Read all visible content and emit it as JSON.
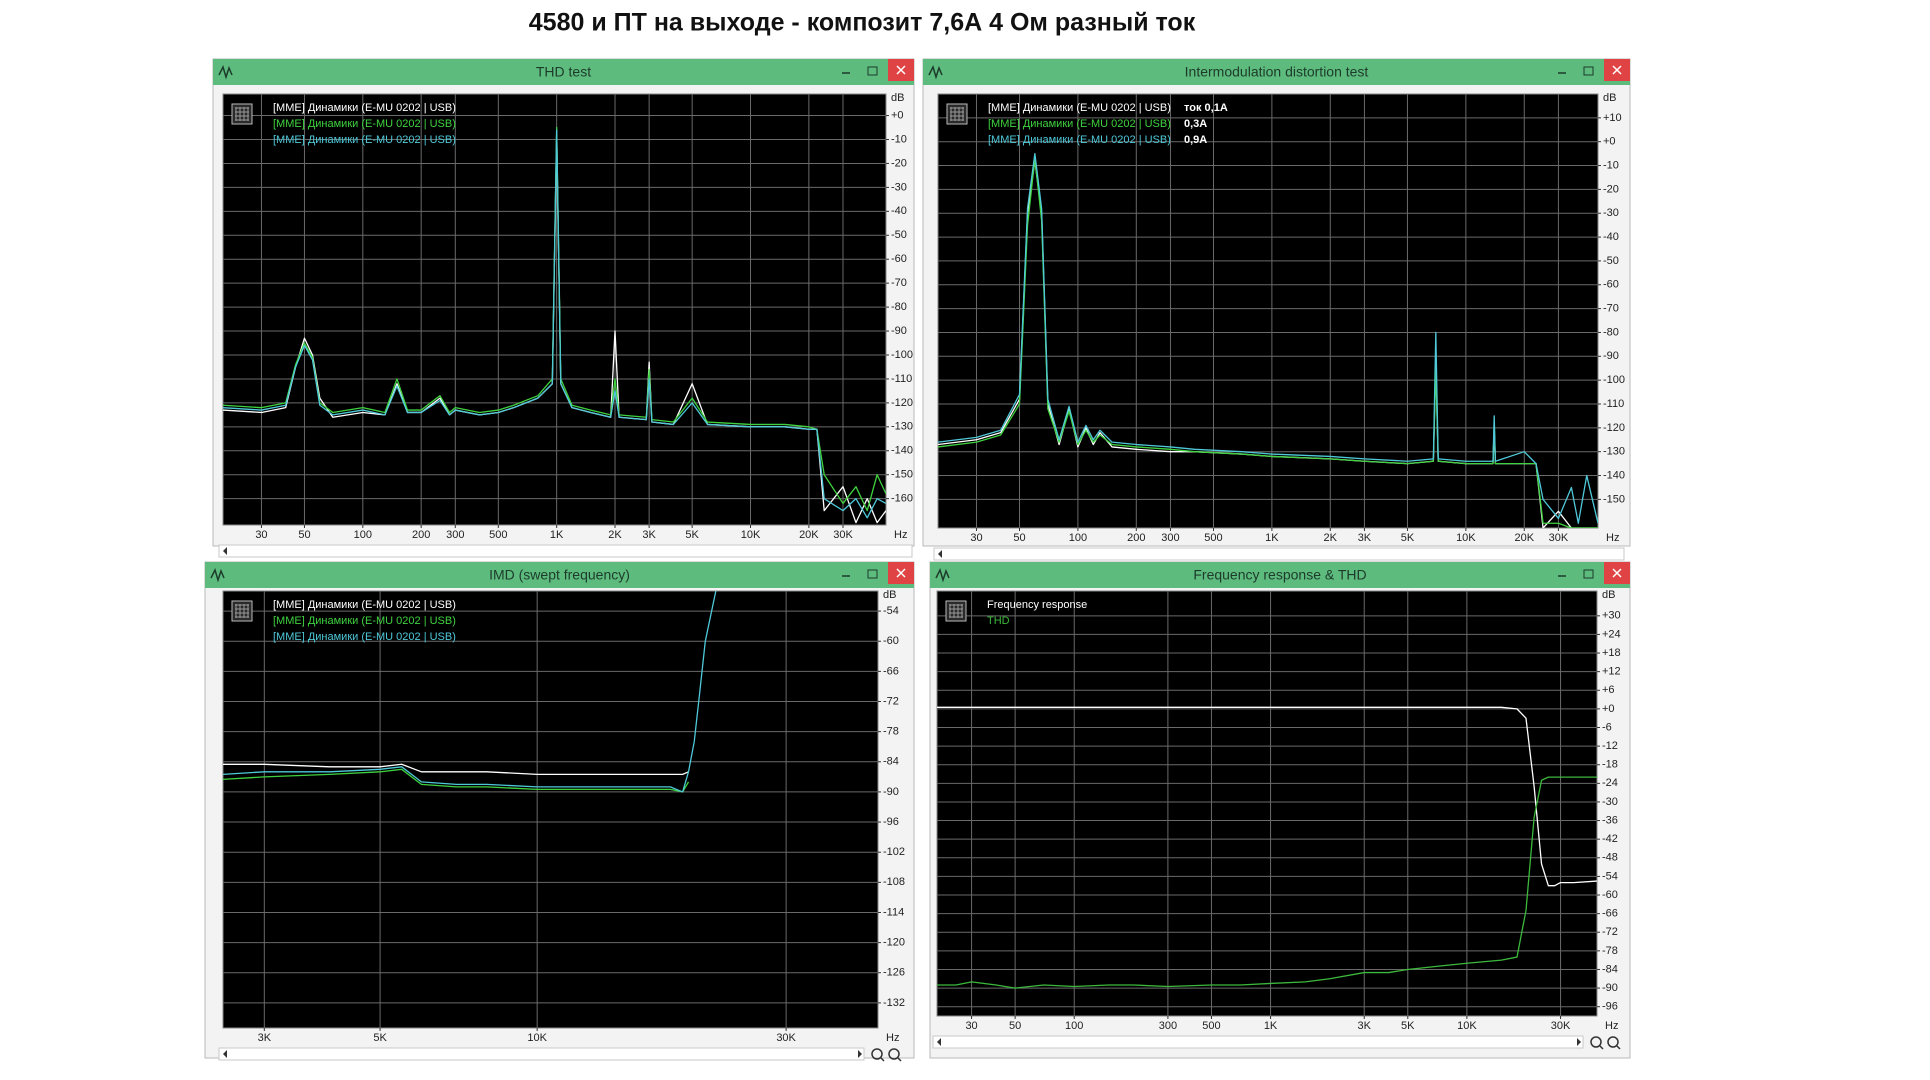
{
  "title": "4580 и ПТ на выходе - композит 7,6А 4 Ом разный ток",
  "chart_data": [
    {
      "type": "line",
      "title": "THD test",
      "xscale": "log",
      "grid": true,
      "x_unit": "Hz",
      "y_unit": "dB",
      "xlim": [
        19,
        50000
      ],
      "ylim": [
        -171,
        9
      ],
      "xticks": [
        30,
        50,
        100,
        200,
        300,
        500,
        {
          "value": 1000,
          "label": "1K"
        },
        {
          "value": 2000,
          "label": "2K"
        },
        {
          "value": 3000,
          "label": "3K"
        },
        {
          "value": 5000,
          "label": "5K"
        },
        {
          "value": 10000,
          "label": "10K"
        },
        {
          "value": 20000,
          "label": "20K"
        },
        {
          "value": 30000,
          "label": "30K"
        }
      ],
      "yticks": [
        {
          "value": 0,
          "label": "+0"
        },
        -10,
        -20,
        -30,
        -40,
        -50,
        -60,
        -70,
        -80,
        -90,
        -100,
        -110,
        -120,
        -130,
        -140,
        -150,
        -160
      ],
      "x": [
        19,
        30,
        40,
        45,
        50,
        55,
        60,
        70,
        100,
        130,
        150,
        170,
        200,
        250,
        280,
        300,
        400,
        500,
        600,
        800,
        950,
        1000,
        1050,
        1200,
        1500,
        1900,
        2000,
        2100,
        2900,
        3000,
        3100,
        4000,
        5000,
        6000,
        10000,
        15000,
        20000,
        22000,
        24000,
        30000,
        35000,
        40000,
        45000,
        50000
      ],
      "series": [
        {
          "name": "[MME] Динамики (E-MU 0202 | USB)",
          "color": "#ffffff",
          "values": [
            -123,
            -124,
            -122,
            -105,
            -93,
            -100,
            -118,
            -126,
            -124,
            -125,
            -112,
            -124,
            -124,
            -118,
            -125,
            -123,
            -125,
            -124,
            -122,
            -118,
            -112,
            -8,
            -112,
            -122,
            -124,
            -126,
            -90,
            -126,
            -127,
            -103,
            -128,
            -129,
            -112,
            -129,
            -130,
            -130,
            -131,
            -131,
            -165,
            -155,
            -170,
            -160,
            -170,
            -165
          ]
        },
        {
          "name": "[MME] Динамики (E-MU 0202 | USB)",
          "color": "#3fd23f",
          "values": [
            -121,
            -122,
            -120,
            -104,
            -95,
            -101,
            -120,
            -124,
            -122,
            -124,
            -110,
            -123,
            -123,
            -117,
            -124,
            -122,
            -124,
            -123,
            -121,
            -117,
            -110,
            -5,
            -110,
            -121,
            -123,
            -125,
            -110,
            -125,
            -126,
            -106,
            -127,
            -128,
            -118,
            -128,
            -129,
            -129,
            -130,
            -131,
            -150,
            -162,
            -155,
            -165,
            -150,
            -158
          ]
        },
        {
          "name": "[MME] Динамики (E-MU 0202 | USB)",
          "color": "#4fc9d9",
          "values": [
            -122,
            -123,
            -121,
            -105,
            -96,
            -102,
            -121,
            -125,
            -123,
            -125,
            -113,
            -124,
            -124,
            -119,
            -125,
            -123,
            -125,
            -124,
            -122,
            -118,
            -112,
            -6,
            -112,
            -122,
            -124,
            -126,
            -115,
            -126,
            -127,
            -110,
            -128,
            -129,
            -120,
            -129,
            -130,
            -130,
            -131,
            -131,
            -160,
            -165,
            -160,
            -168,
            -160,
            -162
          ]
        }
      ]
    },
    {
      "type": "line",
      "title": "Intermodulation distortion test",
      "xscale": "log",
      "grid": true,
      "x_unit": "Hz",
      "y_unit": "dB",
      "xlim": [
        19,
        48000
      ],
      "ylim": [
        -162,
        20
      ],
      "xticks": [
        30,
        50,
        100,
        200,
        300,
        500,
        {
          "value": 1000,
          "label": "1K"
        },
        {
          "value": 2000,
          "label": "2K"
        },
        {
          "value": 3000,
          "label": "3K"
        },
        {
          "value": 5000,
          "label": "5K"
        },
        {
          "value": 10000,
          "label": "10K"
        },
        {
          "value": 20000,
          "label": "20K"
        },
        {
          "value": 30000,
          "label": "30K"
        }
      ],
      "yticks": [
        {
          "value": 10,
          "label": "+10"
        },
        {
          "value": 0,
          "label": "+0"
        },
        -10,
        -20,
        -30,
        -40,
        -50,
        -60,
        -70,
        -80,
        -90,
        -100,
        -110,
        -120,
        -130,
        -140,
        -150
      ],
      "annotations": [
        "ток 0,1A",
        "0,3A",
        "0,9A"
      ],
      "x": [
        19,
        30,
        40,
        50,
        55,
        60,
        65,
        70,
        80,
        90,
        100,
        110,
        120,
        130,
        150,
        200,
        300,
        400,
        700,
        1000,
        2000,
        3000,
        5000,
        6800,
        7000,
        7200,
        10000,
        13800,
        14000,
        14200,
        20000,
        23000,
        25000,
        30000,
        35000,
        38000,
        42000,
        48000
      ],
      "series": [
        {
          "name": "[MME] Динамики (E-MU 0202 | USB)",
          "color": "#ffffff",
          "values": [
            -127,
            -125,
            -122,
            -108,
            -30,
            -8,
            -30,
            -110,
            -127,
            -112,
            -128,
            -120,
            -127,
            -122,
            -128,
            -129,
            -130,
            -130,
            -131,
            -132,
            -133,
            -134,
            -135,
            -134,
            -92,
            -134,
            -135,
            -135,
            -120,
            -135,
            -135,
            -135,
            -162,
            -155,
            -162,
            -162,
            -162,
            -162
          ]
        },
        {
          "name": "[MME] Динамики (E-MU 0202 | USB)",
          "color": "#3fd23f",
          "values": [
            -128,
            -126,
            -123,
            -110,
            -35,
            -7,
            -33,
            -112,
            -126,
            -113,
            -127,
            -121,
            -126,
            -123,
            -127,
            -128,
            -129,
            -130,
            -131,
            -132,
            -133,
            -134,
            -135,
            -134,
            -95,
            -134,
            -135,
            -135,
            -118,
            -135,
            -135,
            -135,
            -160,
            -160,
            -162,
            -162,
            -162,
            -162
          ]
        },
        {
          "name": "[MME] Динамики (E-MU 0202 | USB)",
          "color": "#4fc9d9",
          "values": [
            -126,
            -124,
            -121,
            -106,
            -28,
            -5,
            -28,
            -108,
            -125,
            -111,
            -126,
            -119,
            -125,
            -121,
            -126,
            -127,
            -128,
            -129,
            -130,
            -131,
            -132,
            -133,
            -134,
            -133,
            -80,
            -133,
            -134,
            -134,
            -115,
            -134,
            -130,
            -135,
            -150,
            -158,
            -145,
            -160,
            -140,
            -160
          ]
        }
      ]
    },
    {
      "type": "line",
      "title": "IMD (swept frequency)",
      "xscale": "log",
      "grid": true,
      "x_unit": "Hz",
      "y_unit": "dB",
      "xlim": [
        2500,
        45000
      ],
      "ylim": [
        -137,
        -50
      ],
      "xticks": [
        {
          "value": 3000,
          "label": "3K"
        },
        {
          "value": 5000,
          "label": "5K"
        },
        {
          "value": 10000,
          "label": "10K"
        },
        {
          "value": 30000,
          "label": "30K"
        }
      ],
      "yticks": [
        -54,
        -60,
        -66,
        -72,
        -78,
        -84,
        -90,
        -96,
        -102,
        -108,
        -114,
        -120,
        -126,
        -132
      ],
      "x": [
        2500,
        3000,
        4000,
        5000,
        5500,
        6000,
        7000,
        8000,
        10000,
        12000,
        15000,
        18000,
        19000,
        19500,
        20000,
        20500,
        21000,
        22000
      ],
      "series": [
        {
          "name": "[MME] Динамики (E-MU 0202 | USB)",
          "color": "#ffffff",
          "values": [
            -84.5,
            -84.5,
            -85,
            -85,
            -84.5,
            -86,
            -86,
            -86,
            -86.5,
            -86.5,
            -86.5,
            -86.5,
            -86.5,
            -86,
            null,
            null,
            null,
            null
          ]
        },
        {
          "name": "[MME] Динамики (E-MU 0202 | USB)",
          "color": "#3fd23f",
          "values": [
            -87.5,
            -87,
            -86.5,
            -86,
            -85.5,
            -88.5,
            -89,
            -89,
            -89.5,
            -89.5,
            -89.5,
            -89.5,
            -90,
            -88,
            null,
            null,
            null,
            null
          ]
        },
        {
          "name": "[MME] Динамики (E-MU 0202 | USB)",
          "color": "#4fc9d9",
          "values": [
            -86.5,
            -86,
            -86,
            -85.5,
            -85,
            -88,
            -88.5,
            -88.5,
            -89,
            -89,
            -89,
            -89,
            -90,
            -86,
            -80,
            -70,
            -60,
            -50
          ]
        }
      ]
    },
    {
      "type": "line",
      "title": "Frequency response & THD",
      "xscale": "log",
      "grid": true,
      "x_unit": "Hz",
      "y_unit": "dB",
      "xlim": [
        20,
        46000
      ],
      "ylim": [
        -99,
        38
      ],
      "xticks": [
        30,
        50,
        100,
        300,
        500,
        {
          "value": 1000,
          "label": "1K"
        },
        {
          "value": 3000,
          "label": "3K"
        },
        {
          "value": 5000,
          "label": "5K"
        },
        {
          "value": 10000,
          "label": "10K"
        },
        {
          "value": 30000,
          "label": "30K"
        }
      ],
      "yticks": [
        {
          "value": 30,
          "label": "+30"
        },
        {
          "value": 24,
          "label": "+24"
        },
        {
          "value": 18,
          "label": "+18"
        },
        {
          "value": 12,
          "label": "+12"
        },
        {
          "value": 6,
          "label": "+6"
        },
        {
          "value": 0,
          "label": "+0"
        },
        -6,
        -12,
        -18,
        -24,
        -30,
        -36,
        -42,
        -48,
        -54,
        -60,
        -66,
        -72,
        -78,
        -84,
        -90,
        -96
      ],
      "x": [
        20,
        25,
        30,
        40,
        50,
        70,
        100,
        150,
        200,
        300,
        500,
        700,
        1000,
        1500,
        2000,
        3000,
        4000,
        5000,
        7000,
        10000,
        15000,
        18000,
        20000,
        22000,
        24000,
        26000,
        28000,
        30000,
        35000,
        46000
      ],
      "series": [
        {
          "name": "Frequency response",
          "color": "#ffffff",
          "values": [
            0.5,
            0.5,
            0.5,
            0.5,
            0.5,
            0.5,
            0.5,
            0.5,
            0.5,
            0.5,
            0.5,
            0.5,
            0.5,
            0.5,
            0.5,
            0.5,
            0.5,
            0.5,
            0.5,
            0.5,
            0.5,
            0,
            -3,
            -25,
            -50,
            -57,
            -57,
            -56,
            -56,
            -55.5
          ]
        },
        {
          "name": "THD",
          "color": "#3cb93c",
          "values": [
            -89,
            -89,
            -88,
            -89,
            -90,
            -89,
            -89.5,
            -89,
            -89,
            -89.5,
            -89,
            -89,
            -88.5,
            -88,
            -87,
            -85,
            -85,
            -84,
            -83,
            -82,
            -81,
            -80,
            -65,
            -35,
            -23,
            -22,
            -22,
            -22,
            -22,
            -22
          ]
        }
      ]
    }
  ]
}
